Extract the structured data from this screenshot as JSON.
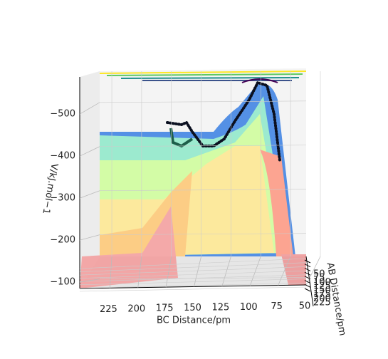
{
  "chart_data": {
    "type": "surface3d",
    "xlabel": "BC Distance/pm",
    "ylabel": "AB Distance/pm",
    "zlabel": "V/kJ.mol−1",
    "xlim": [
      50,
      250
    ],
    "xticks": [
      225,
      200,
      175,
      150,
      125,
      100,
      75,
      50
    ],
    "ylim": [
      50,
      225
    ],
    "yticks": [
      50,
      75,
      100,
      125,
      150,
      175,
      200,
      225
    ],
    "zlim": [
      -80,
      -580
    ],
    "zticks": [
      {
        "value": -500,
        "label": "−500"
      },
      {
        "value": -400,
        "label": "−400"
      },
      {
        "value": -300,
        "label": "−300"
      },
      {
        "value": -200,
        "label": "−200"
      },
      {
        "value": -100,
        "label": "−100"
      }
    ]
  }
}
